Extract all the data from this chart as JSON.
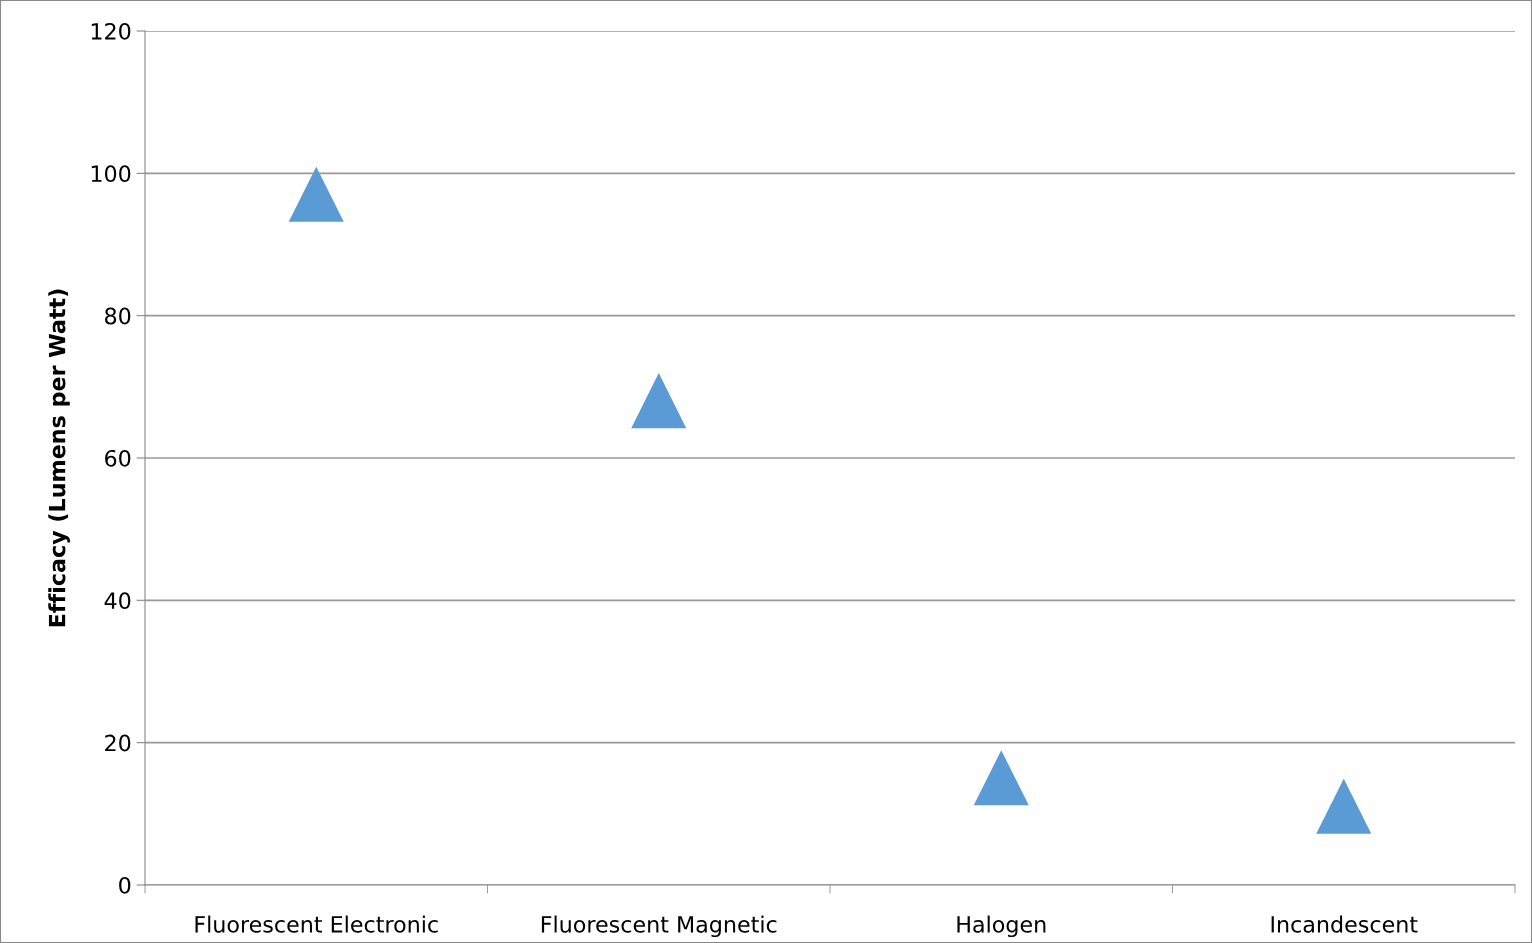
{
  "chart_data": {
    "type": "scatter",
    "ylabel": "Efficacy (Lumens per Watt)",
    "categories": [
      "Fluorescent Electronic",
      "Fluorescent Magnetic",
      "Halogen",
      "Incandescent"
    ],
    "values": [
      97,
      68,
      15,
      11
    ],
    "color": "#5b9bd5",
    "marker": "triangle",
    "ylim": [
      0,
      120
    ],
    "yticks": [
      0,
      20,
      40,
      60,
      80,
      100,
      120
    ],
    "grid": "y",
    "legend": false
  }
}
